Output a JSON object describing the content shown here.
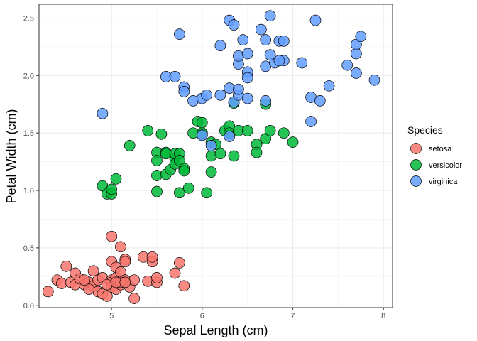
{
  "chart_data": {
    "type": "scatter",
    "xlabel": "Sepal Length (cm)",
    "ylabel": "Petal Width (cm)",
    "xlim": [
      4.2,
      8.1
    ],
    "ylim": [
      -0.02,
      2.62
    ],
    "x_ticks": [
      "5",
      "6",
      "7",
      "8"
    ],
    "x_tick_values": [
      5,
      6,
      7,
      8
    ],
    "y_ticks": [
      "0.0",
      "0.5",
      "1.0",
      "1.5",
      "2.0",
      "2.5"
    ],
    "y_tick_values": [
      0.0,
      0.5,
      1.0,
      1.5,
      2.0,
      2.5
    ],
    "grid": true,
    "legend_position": "right",
    "legend_title": "Species",
    "series": [
      {
        "name": "setosa",
        "color": "#F8766D",
        "points": [
          [
            4.3,
            0.12
          ],
          [
            4.4,
            0.22
          ],
          [
            4.45,
            0.19
          ],
          [
            4.5,
            0.34
          ],
          [
            4.55,
            0.2
          ],
          [
            4.6,
            0.28
          ],
          [
            4.6,
            0.18
          ],
          [
            4.65,
            0.23
          ],
          [
            4.7,
            0.18
          ],
          [
            4.75,
            0.2
          ],
          [
            4.8,
            0.3
          ],
          [
            4.8,
            0.17
          ],
          [
            4.85,
            0.12
          ],
          [
            4.85,
            0.22
          ],
          [
            4.9,
            0.1
          ],
          [
            4.9,
            0.24
          ],
          [
            4.95,
            0.08
          ],
          [
            5.0,
            0.38
          ],
          [
            5.0,
            0.22
          ],
          [
            5.0,
            0.2
          ],
          [
            5.0,
            0.6
          ],
          [
            5.0,
            0.16
          ],
          [
            5.05,
            0.33
          ],
          [
            5.05,
            0.24
          ],
          [
            5.05,
            0.14
          ],
          [
            5.1,
            0.18
          ],
          [
            5.1,
            0.51
          ],
          [
            5.1,
            0.29
          ],
          [
            5.15,
            0.4
          ],
          [
            5.15,
            0.38
          ],
          [
            5.15,
            0.2
          ],
          [
            5.15,
            0.22
          ],
          [
            5.2,
            0.16
          ],
          [
            5.25,
            0.22
          ],
          [
            5.25,
            0.06
          ],
          [
            5.35,
            0.42
          ],
          [
            5.4,
            0.21
          ],
          [
            5.45,
            0.38
          ],
          [
            5.45,
            0.42
          ],
          [
            5.5,
            0.2
          ],
          [
            5.5,
            0.24
          ],
          [
            5.7,
            0.28
          ],
          [
            5.75,
            0.37
          ],
          [
            5.8,
            0.17
          ],
          [
            5.1,
            0.2
          ],
          [
            4.95,
            0.18
          ],
          [
            5.05,
            0.2
          ],
          [
            4.75,
            0.14
          ],
          [
            5.15,
            0.2
          ],
          [
            4.7,
            0.22
          ]
        ]
      },
      {
        "name": "versicolor",
        "color": "#00BA38",
        "points": [
          [
            4.9,
            1.04
          ],
          [
            4.95,
            0.97
          ],
          [
            5.0,
            0.97
          ],
          [
            5.0,
            1.01
          ],
          [
            5.05,
            1.1
          ],
          [
            5.2,
            1.39
          ],
          [
            5.4,
            1.52
          ],
          [
            5.5,
            1.33
          ],
          [
            5.5,
            1.26
          ],
          [
            5.5,
            1.13
          ],
          [
            5.5,
            0.99
          ],
          [
            5.55,
            1.49
          ],
          [
            5.6,
            1.33
          ],
          [
            5.6,
            1.32
          ],
          [
            5.6,
            1.14
          ],
          [
            5.65,
            1.18
          ],
          [
            5.7,
            1.28
          ],
          [
            5.7,
            1.23
          ],
          [
            5.7,
            1.32
          ],
          [
            5.75,
            0.98
          ],
          [
            5.75,
            1.32
          ],
          [
            5.75,
            1.26
          ],
          [
            5.8,
            1.19
          ],
          [
            5.8,
            1.17
          ],
          [
            5.85,
            1.02
          ],
          [
            5.9,
            1.5
          ],
          [
            5.95,
            1.6
          ],
          [
            6.0,
            1.59
          ],
          [
            6.0,
            1.49
          ],
          [
            6.0,
            1.5
          ],
          [
            6.05,
            0.98
          ],
          [
            6.1,
            1.42
          ],
          [
            6.1,
            1.3
          ],
          [
            6.1,
            1.16
          ],
          [
            6.15,
            1.4
          ],
          [
            6.2,
            1.32
          ],
          [
            6.25,
            1.52
          ],
          [
            6.3,
            1.56
          ],
          [
            6.3,
            1.5
          ],
          [
            6.35,
            1.3
          ],
          [
            6.35,
            1.76
          ],
          [
            6.4,
            1.52
          ],
          [
            6.5,
            1.52
          ],
          [
            6.6,
            1.4
          ],
          [
            6.6,
            1.33
          ],
          [
            6.7,
            1.45
          ],
          [
            6.7,
            1.75
          ],
          [
            6.75,
            1.52
          ],
          [
            6.9,
            1.5
          ],
          [
            7.0,
            1.42
          ]
        ]
      },
      {
        "name": "virginica",
        "color": "#619CFF",
        "points": [
          [
            4.9,
            1.67
          ],
          [
            5.6,
            1.99
          ],
          [
            5.7,
            1.99
          ],
          [
            5.75,
            2.36
          ],
          [
            5.8,
            1.9
          ],
          [
            5.8,
            1.86
          ],
          [
            5.9,
            1.78
          ],
          [
            6.0,
            1.8
          ],
          [
            6.0,
            1.48
          ],
          [
            6.05,
            1.83
          ],
          [
            6.1,
            1.39
          ],
          [
            6.2,
            1.83
          ],
          [
            6.2,
            2.26
          ],
          [
            6.3,
            1.89
          ],
          [
            6.3,
            1.47
          ],
          [
            6.3,
            2.48
          ],
          [
            6.35,
            2.44
          ],
          [
            6.35,
            1.77
          ],
          [
            6.4,
            1.83
          ],
          [
            6.4,
            1.88
          ],
          [
            6.4,
            2.1
          ],
          [
            6.4,
            2.17
          ],
          [
            6.45,
            2.31
          ],
          [
            6.5,
            2.19
          ],
          [
            6.5,
            2.03
          ],
          [
            6.5,
            1.98
          ],
          [
            6.5,
            1.8
          ],
          [
            6.65,
            2.4
          ],
          [
            6.7,
            2.31
          ],
          [
            6.7,
            2.08
          ],
          [
            6.7,
            1.78
          ],
          [
            6.75,
            2.52
          ],
          [
            6.8,
            2.11
          ],
          [
            6.85,
            2.3
          ],
          [
            6.9,
            2.3
          ],
          [
            6.9,
            2.13
          ],
          [
            7.1,
            2.11
          ],
          [
            7.2,
            1.81
          ],
          [
            7.2,
            1.6
          ],
          [
            7.25,
            2.48
          ],
          [
            7.4,
            1.91
          ],
          [
            7.3,
            1.78
          ],
          [
            7.6,
            2.09
          ],
          [
            7.7,
            2.19
          ],
          [
            7.7,
            2.27
          ],
          [
            7.75,
            2.34
          ],
          [
            7.7,
            2.02
          ],
          [
            7.9,
            1.96
          ],
          [
            6.85,
            2.13
          ],
          [
            6.75,
            2.18
          ]
        ]
      }
    ]
  }
}
